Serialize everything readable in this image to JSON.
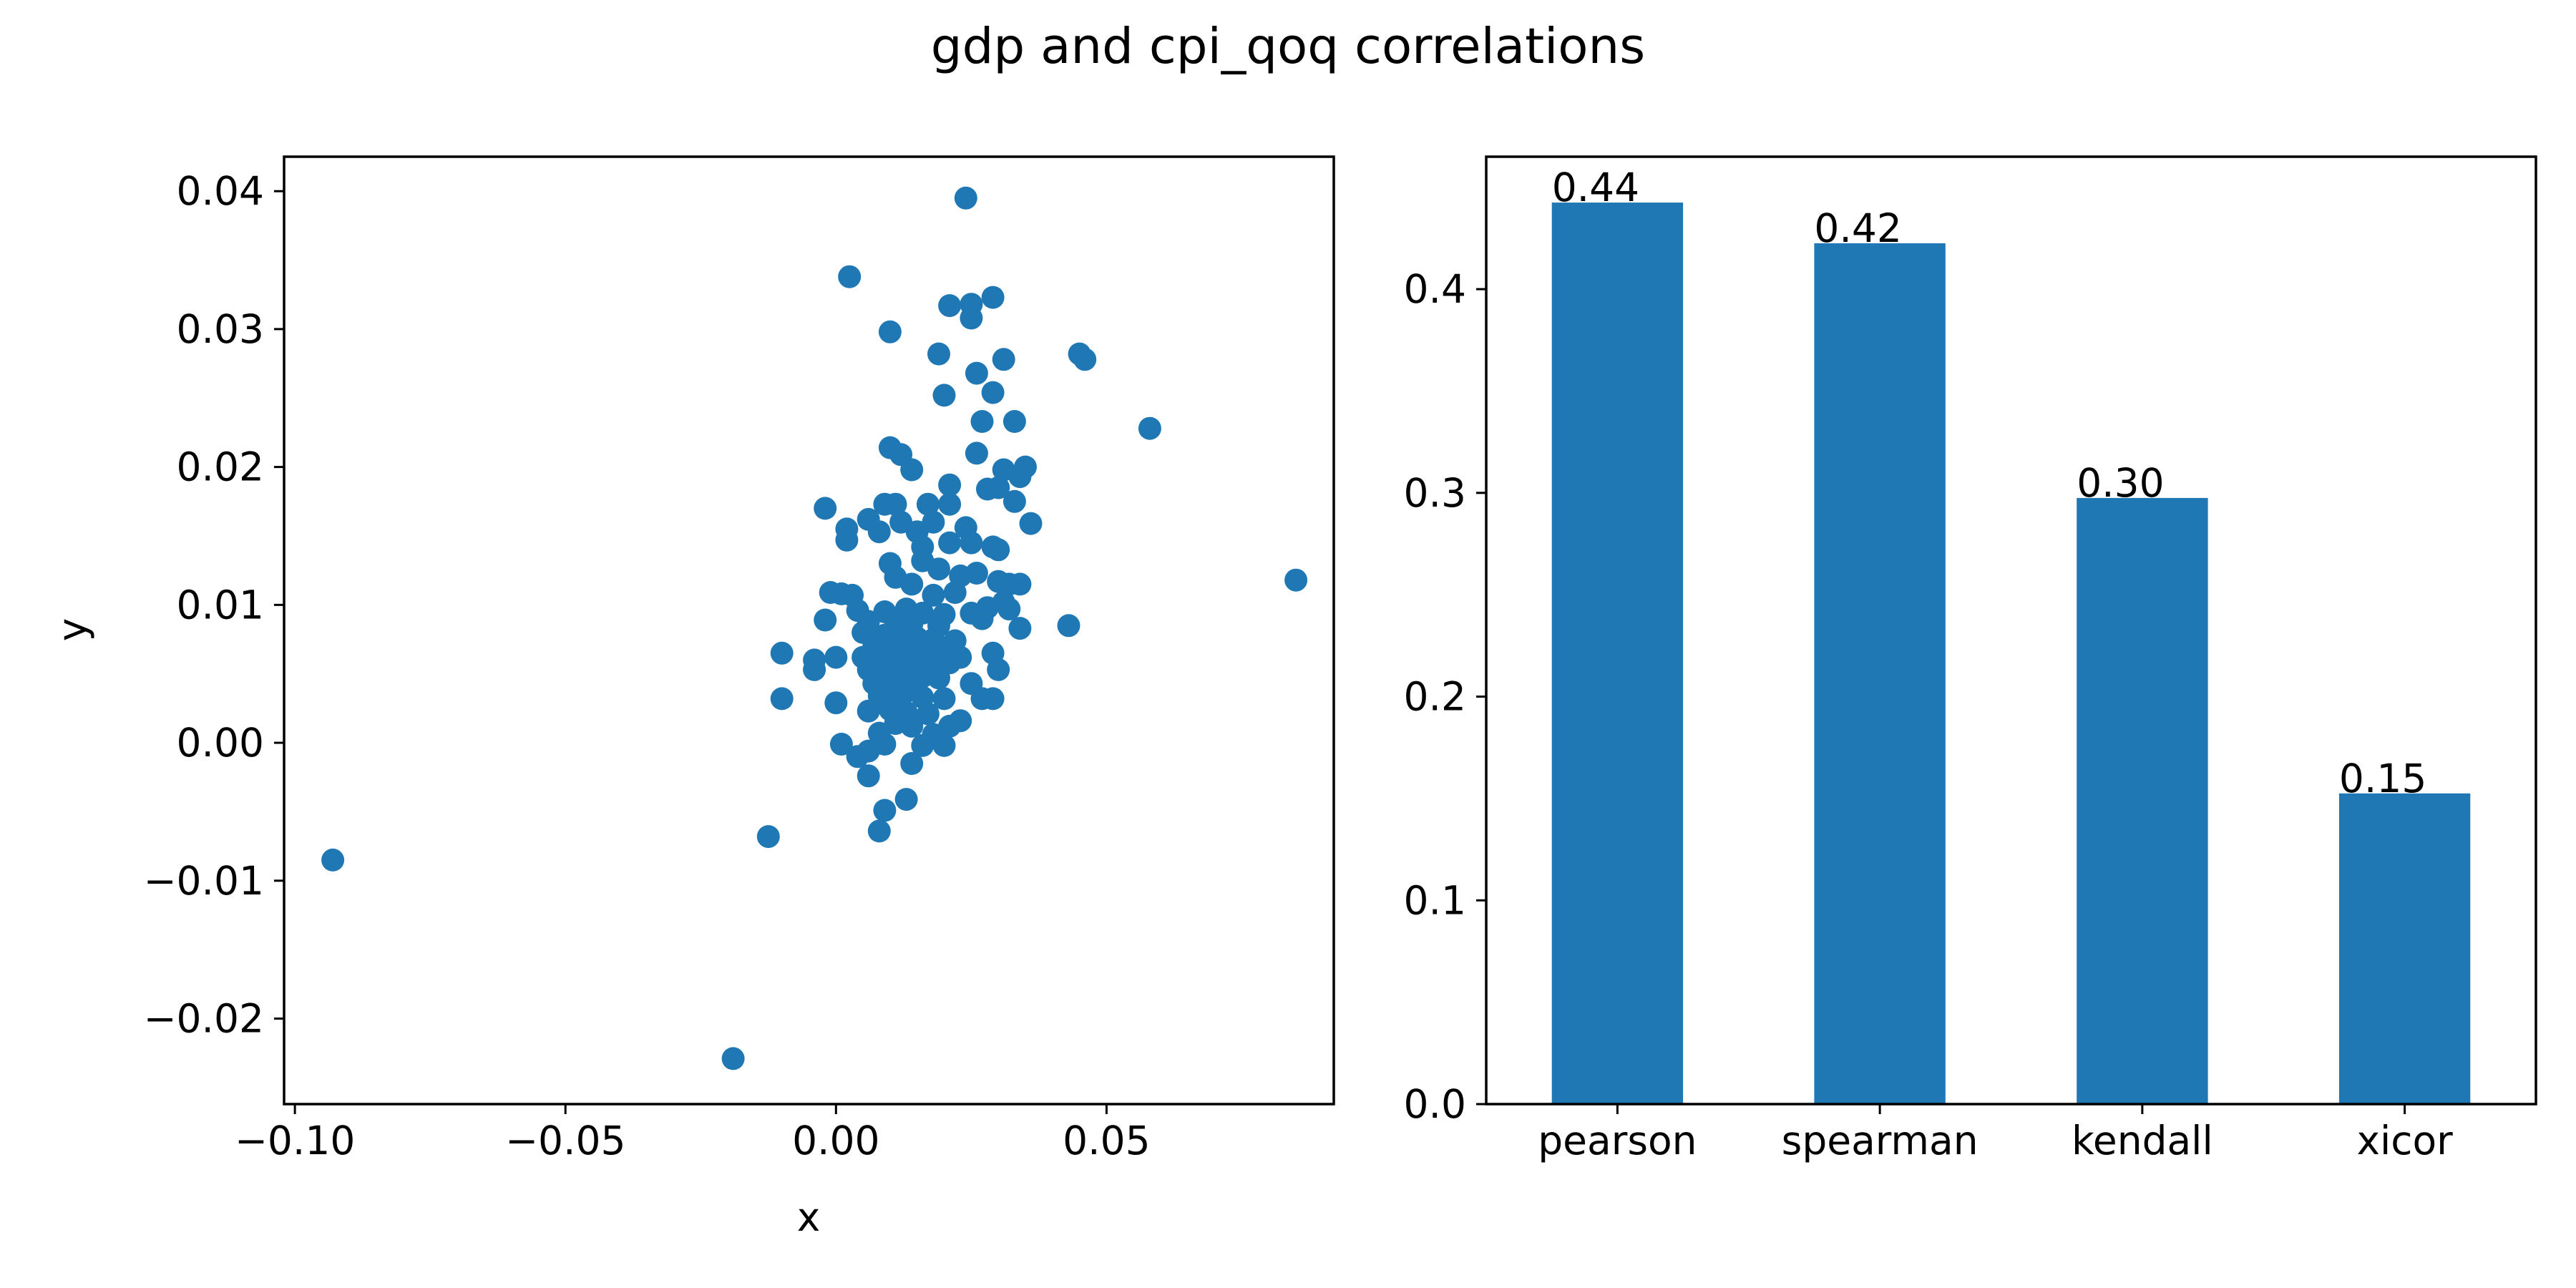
{
  "title": "gdp and cpi_qoq correlations",
  "colors": {
    "mark": "#1f77b4"
  },
  "chart_data": [
    {
      "type": "scatter",
      "xlabel": "x",
      "ylabel": "y",
      "xlim": [
        -0.102,
        0.092
      ],
      "ylim": [
        -0.0262,
        0.0425
      ],
      "xticks": [
        {
          "value": -0.1,
          "label": "−0.10"
        },
        {
          "value": -0.05,
          "label": "−0.05"
        },
        {
          "value": 0.0,
          "label": "0.00"
        },
        {
          "value": 0.05,
          "label": "0.05"
        }
      ],
      "yticks": [
        {
          "value": -0.02,
          "label": "−0.02"
        },
        {
          "value": -0.01,
          "label": "−0.01"
        },
        {
          "value": 0.0,
          "label": "0.00"
        },
        {
          "value": 0.01,
          "label": "0.01"
        },
        {
          "value": 0.02,
          "label": "0.02"
        },
        {
          "value": 0.03,
          "label": "0.03"
        },
        {
          "value": 0.04,
          "label": "0.04"
        }
      ],
      "points": [
        [
          -0.093,
          -0.0085
        ],
        [
          -0.019,
          -0.0229
        ],
        [
          -0.0125,
          -0.0068
        ],
        [
          0.085,
          0.0118
        ],
        [
          0.058,
          0.0228
        ],
        [
          0.024,
          0.0395
        ],
        [
          0.0025,
          0.0338
        ],
        [
          0.01,
          0.0298
        ],
        [
          0.029,
          0.0323
        ],
        [
          0.021,
          0.0317
        ],
        [
          0.025,
          0.0318
        ],
        [
          0.025,
          0.0308
        ],
        [
          0.045,
          0.0282
        ],
        [
          0.046,
          0.0278
        ],
        [
          0.019,
          0.0282
        ],
        [
          0.031,
          0.0278
        ],
        [
          0.026,
          0.0268
        ],
        [
          0.02,
          0.0252
        ],
        [
          0.029,
          0.0254
        ],
        [
          0.033,
          0.0233
        ],
        [
          0.027,
          0.0233
        ],
        [
          0.01,
          0.0214
        ],
        [
          0.012,
          0.0209
        ],
        [
          0.026,
          0.021
        ],
        [
          0.014,
          0.0198
        ],
        [
          0.031,
          0.0198
        ],
        [
          0.035,
          0.02
        ],
        [
          0.034,
          0.0193
        ],
        [
          0.021,
          0.0187
        ],
        [
          0.028,
          0.0184
        ],
        [
          0.03,
          0.0185
        ],
        [
          0.033,
          0.0175
        ],
        [
          0.036,
          0.0159
        ],
        [
          -0.002,
          0.017
        ],
        [
          0.009,
          0.0173
        ],
        [
          0.011,
          0.0173
        ],
        [
          0.017,
          0.0173
        ],
        [
          0.021,
          0.0173
        ],
        [
          0.006,
          0.0162
        ],
        [
          0.012,
          0.016
        ],
        [
          0.018,
          0.016
        ],
        [
          0.024,
          0.0156
        ],
        [
          0.002,
          0.0155
        ],
        [
          0.008,
          0.0153
        ],
        [
          0.015,
          0.0153
        ],
        [
          0.002,
          0.0147
        ],
        [
          0.016,
          0.0142
        ],
        [
          0.021,
          0.0145
        ],
        [
          0.025,
          0.0145
        ],
        [
          0.029,
          0.0142
        ],
        [
          0.03,
          0.014
        ],
        [
          0.01,
          0.013
        ],
        [
          0.016,
          0.0132
        ],
        [
          0.019,
          0.0126
        ],
        [
          0.023,
          0.0121
        ],
        [
          0.026,
          0.0123
        ],
        [
          0.032,
          0.0115
        ],
        [
          0.03,
          0.0117
        ],
        [
          0.034,
          0.0115
        ],
        [
          0.011,
          0.012
        ],
        [
          0.014,
          0.0115
        ],
        [
          -0.001,
          0.0109
        ],
        [
          0.001,
          0.0108
        ],
        [
          0.003,
          0.0107
        ],
        [
          0.018,
          0.0107
        ],
        [
          0.022,
          0.0109
        ],
        [
          0.028,
          0.0098
        ],
        [
          0.031,
          0.0102
        ],
        [
          0.032,
          0.0097
        ],
        [
          0.004,
          0.0096
        ],
        [
          0.009,
          0.0095
        ],
        [
          0.013,
          0.0097
        ],
        [
          0.016,
          0.0094
        ],
        [
          0.02,
          0.0093
        ],
        [
          0.025,
          0.0094
        ],
        [
          0.027,
          0.009
        ],
        [
          -0.002,
          0.0089
        ],
        [
          0.006,
          0.0088
        ],
        [
          0.011,
          0.0087
        ],
        [
          0.014,
          0.0086
        ],
        [
          0.019,
          0.0085
        ],
        [
          0.034,
          0.0083
        ],
        [
          0.043,
          0.0085
        ],
        [
          0.005,
          0.008
        ],
        [
          0.009,
          0.0078
        ],
        [
          0.012,
          0.0078
        ],
        [
          0.015,
          0.0076
        ],
        [
          0.018,
          0.0075
        ],
        [
          0.022,
          0.0074
        ],
        [
          0.007,
          0.007
        ],
        [
          0.01,
          0.0068
        ],
        [
          0.013,
          0.0066
        ],
        [
          0.016,
          0.0065
        ],
        [
          0.02,
          0.0064
        ],
        [
          -0.01,
          0.0065
        ],
        [
          0.029,
          0.0065
        ],
        [
          0.005,
          0.0062
        ],
        [
          0.008,
          0.006
        ],
        [
          0.011,
          0.0059
        ],
        [
          0.014,
          0.0058
        ],
        [
          0.017,
          0.0057
        ],
        [
          0.021,
          0.0058
        ],
        [
          -0.004,
          0.006
        ],
        [
          0.0,
          0.0062
        ],
        [
          0.023,
          0.0062
        ],
        [
          -0.004,
          0.0053
        ],
        [
          0.006,
          0.0053
        ],
        [
          0.009,
          0.0051
        ],
        [
          0.013,
          0.005
        ],
        [
          0.016,
          0.0048
        ],
        [
          0.019,
          0.0047
        ],
        [
          0.03,
          0.0053
        ],
        [
          0.007,
          0.0043
        ],
        [
          0.011,
          0.0041
        ],
        [
          0.014,
          0.004
        ],
        [
          0.025,
          0.0043
        ],
        [
          0.008,
          0.0034
        ],
        [
          0.012,
          0.0033
        ],
        [
          0.016,
          0.0033
        ],
        [
          0.02,
          0.0032
        ],
        [
          0.027,
          0.0032
        ],
        [
          0.029,
          0.0032
        ],
        [
          -0.01,
          0.0032
        ],
        [
          0.0,
          0.0029
        ],
        [
          0.006,
          0.0023
        ],
        [
          0.01,
          0.0024
        ],
        [
          0.013,
          0.0022
        ],
        [
          0.017,
          0.0021
        ],
        [
          0.023,
          0.0016
        ],
        [
          0.011,
          0.0014
        ],
        [
          0.014,
          0.0012
        ],
        [
          0.021,
          0.0012
        ],
        [
          0.008,
          0.0007
        ],
        [
          0.018,
          0.0006
        ],
        [
          0.001,
          -0.0001
        ],
        [
          0.009,
          -0.0001
        ],
        [
          0.016,
          -0.0002
        ],
        [
          0.02,
          -0.0002
        ],
        [
          0.004,
          -0.001
        ],
        [
          0.006,
          -0.0006
        ],
        [
          0.014,
          -0.0015
        ],
        [
          0.006,
          -0.0024
        ],
        [
          0.013,
          -0.0041
        ],
        [
          0.009,
          -0.0049
        ],
        [
          0.008,
          -0.0064
        ]
      ]
    },
    {
      "type": "bar",
      "categories": [
        "pearson",
        "spearman",
        "kendall",
        "xicor"
      ],
      "values": [
        0.4425,
        0.4225,
        0.2975,
        0.1525
      ],
      "data_labels": [
        "0.44",
        "0.42",
        "0.30",
        "0.15"
      ],
      "ylim": [
        0,
        0.465
      ],
      "yticks": [
        {
          "value": 0.0,
          "label": "0.0"
        },
        {
          "value": 0.1,
          "label": "0.1"
        },
        {
          "value": 0.2,
          "label": "0.2"
        },
        {
          "value": 0.3,
          "label": "0.3"
        },
        {
          "value": 0.4,
          "label": "0.4"
        }
      ]
    }
  ]
}
